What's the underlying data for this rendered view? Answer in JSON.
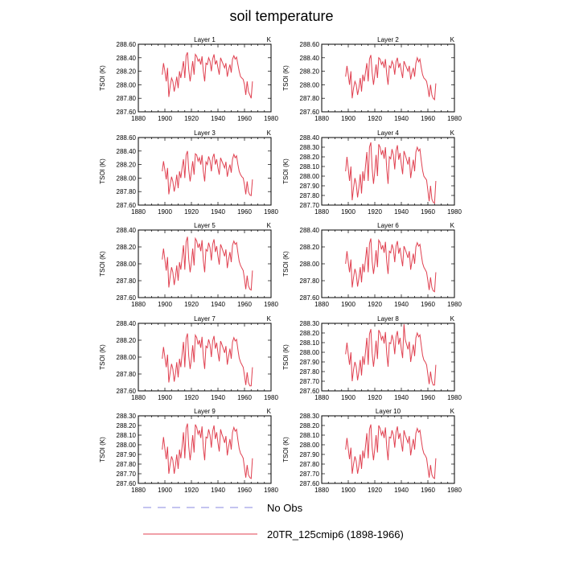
{
  "figure": {
    "title": "soil temperature",
    "legend": [
      {
        "label": "No Obs",
        "color": "#8a8ae0",
        "style": "dashed"
      },
      {
        "label": "20TR_125cmip6 (1898-1966)",
        "color": "#e04050",
        "style": "solid"
      }
    ]
  },
  "chart_data": [
    {
      "type": "line",
      "title": "Layer 1",
      "unit_label": "K",
      "ylabel": "TSOI  (K)",
      "xlim": [
        1880,
        1980
      ],
      "xticks": [
        1880,
        1900,
        1920,
        1940,
        1960,
        1980
      ],
      "ylim": [
        287.6,
        288.6
      ],
      "yticks": [
        287.6,
        287.8,
        288.0,
        288.2,
        288.4,
        288.6
      ],
      "ytick_labels": [
        "287.60",
        "287.80",
        "288.00",
        "288.20",
        "288.40",
        "288.60"
      ],
      "x_start": 1898,
      "values": [
        288.15,
        288.32,
        288.2,
        288.05,
        288.25,
        287.82,
        287.98,
        288.1,
        288.05,
        287.9,
        288.0,
        288.12,
        287.95,
        288.2,
        288.1,
        288.22,
        288.35,
        288.1,
        288.43,
        288.48,
        288.22,
        288.05,
        288.2,
        288.35,
        288.15,
        288.45,
        288.42,
        288.35,
        288.38,
        288.3,
        288.42,
        288.2,
        288.05,
        288.32,
        288.3,
        288.4,
        288.35,
        288.2,
        288.38,
        288.45,
        288.3,
        288.36,
        288.25,
        288.15,
        288.4,
        288.35,
        288.3,
        288.25,
        288.32,
        288.12,
        288.22,
        288.3,
        288.18,
        288.38,
        288.43,
        288.38,
        288.41,
        288.3,
        288.2,
        288.12,
        288.1,
        288.08,
        288.0,
        287.85,
        288.05,
        287.9,
        287.85,
        287.8,
        288.05
      ]
    },
    {
      "type": "line",
      "title": "Layer 2",
      "unit_label": "K",
      "ylabel": "TSOI  (K)",
      "xlim": [
        1880,
        1980
      ],
      "xticks": [
        1880,
        1900,
        1920,
        1940,
        1960,
        1980
      ],
      "ylim": [
        287.6,
        288.6
      ],
      "yticks": [
        287.6,
        287.8,
        288.0,
        288.2,
        288.4,
        288.6
      ],
      "ytick_labels": [
        "287.60",
        "287.80",
        "288.00",
        "288.20",
        "288.40",
        "288.60"
      ],
      "x_start": 1898,
      "values": [
        288.12,
        288.28,
        288.15,
        288.0,
        288.2,
        287.8,
        287.95,
        288.05,
        288.0,
        287.85,
        287.95,
        288.1,
        287.9,
        288.15,
        288.05,
        288.18,
        288.32,
        288.05,
        288.38,
        288.44,
        288.18,
        288.0,
        288.15,
        288.3,
        288.1,
        288.4,
        288.38,
        288.3,
        288.34,
        288.25,
        288.38,
        288.15,
        288.0,
        288.28,
        288.25,
        288.35,
        288.3,
        288.15,
        288.34,
        288.4,
        288.25,
        288.32,
        288.2,
        288.1,
        288.35,
        288.3,
        288.25,
        288.2,
        288.28,
        288.08,
        288.18,
        288.25,
        288.12,
        288.32,
        288.4,
        288.34,
        288.38,
        288.25,
        288.15,
        288.1,
        288.08,
        288.05,
        287.95,
        287.82,
        288.0,
        287.85,
        287.8,
        287.78,
        288.02
      ]
    },
    {
      "type": "line",
      "title": "Layer 3",
      "unit_label": "K",
      "ylabel": "TSOI  (K)",
      "xlim": [
        1880,
        1980
      ],
      "xticks": [
        1880,
        1900,
        1920,
        1940,
        1960,
        1980
      ],
      "ylim": [
        287.6,
        288.6
      ],
      "yticks": [
        287.6,
        287.8,
        288.0,
        288.2,
        288.4,
        288.6
      ],
      "ytick_labels": [
        "287.60",
        "287.80",
        "288.00",
        "288.20",
        "288.40",
        "288.60"
      ],
      "x_start": 1898,
      "values": [
        288.1,
        288.25,
        288.12,
        287.98,
        288.15,
        287.76,
        287.9,
        288.02,
        287.95,
        287.8,
        287.9,
        288.05,
        287.85,
        288.1,
        288.0,
        288.15,
        288.28,
        288.0,
        288.34,
        288.4,
        288.12,
        287.95,
        288.1,
        288.25,
        288.05,
        288.36,
        288.34,
        288.25,
        288.3,
        288.2,
        288.34,
        288.1,
        287.95,
        288.24,
        288.2,
        288.32,
        288.26,
        288.1,
        288.3,
        288.36,
        288.2,
        288.28,
        288.15,
        288.05,
        288.3,
        288.25,
        288.2,
        288.15,
        288.24,
        288.02,
        288.12,
        288.2,
        288.08,
        288.28,
        288.35,
        288.3,
        288.33,
        288.2,
        288.1,
        288.05,
        288.02,
        288.0,
        287.9,
        287.76,
        287.95,
        287.8,
        287.75,
        287.74,
        287.98
      ]
    },
    {
      "type": "line",
      "title": "Layer 4",
      "unit_label": "K",
      "ylabel": "TSOI  (K)",
      "xlim": [
        1880,
        1980
      ],
      "xticks": [
        1880,
        1900,
        1920,
        1940,
        1960,
        1980
      ],
      "ylim": [
        287.7,
        288.4
      ],
      "yticks": [
        287.7,
        287.8,
        287.9,
        288.0,
        288.1,
        288.2,
        288.3,
        288.4
      ],
      "ytick_labels": [
        "287.70",
        "287.80",
        "287.90",
        "288.00",
        "288.10",
        "288.20",
        "288.30",
        "288.40"
      ],
      "x_start": 1898,
      "values": [
        288.05,
        288.2,
        288.08,
        287.95,
        288.1,
        287.75,
        287.88,
        287.98,
        287.92,
        287.78,
        287.88,
        288.02,
        287.82,
        288.05,
        287.95,
        288.1,
        288.25,
        287.95,
        288.3,
        288.35,
        288.08,
        287.92,
        288.05,
        288.22,
        288.0,
        288.33,
        288.3,
        288.22,
        288.27,
        288.18,
        288.3,
        288.07,
        287.92,
        288.2,
        288.18,
        288.28,
        288.22,
        288.07,
        288.26,
        288.32,
        288.17,
        288.24,
        288.12,
        288.02,
        288.26,
        288.22,
        288.17,
        288.12,
        288.2,
        287.98,
        288.08,
        288.17,
        288.05,
        288.25,
        288.3,
        288.26,
        288.28,
        288.16,
        288.06,
        288.0,
        287.98,
        287.96,
        287.85,
        287.74,
        287.9,
        287.76,
        287.73,
        287.72,
        287.95
      ]
    },
    {
      "type": "line",
      "title": "Layer 5",
      "unit_label": "K",
      "ylabel": "TSOI  (K)",
      "xlim": [
        1880,
        1980
      ],
      "xticks": [
        1880,
        1900,
        1920,
        1940,
        1960,
        1980
      ],
      "ylim": [
        287.6,
        288.4
      ],
      "yticks": [
        287.6,
        287.8,
        288.0,
        288.2,
        288.4
      ],
      "ytick_labels": [
        "287.60",
        "287.80",
        "288.00",
        "288.20",
        "288.40"
      ],
      "x_start": 1898,
      "values": [
        288.05,
        288.18,
        288.05,
        287.92,
        288.08,
        287.72,
        287.85,
        287.96,
        287.9,
        287.75,
        287.85,
        287.98,
        287.8,
        288.02,
        287.93,
        288.07,
        288.22,
        287.93,
        288.26,
        288.32,
        288.05,
        287.9,
        288.02,
        288.18,
        287.98,
        288.3,
        288.27,
        288.19,
        288.24,
        288.15,
        288.28,
        288.04,
        287.9,
        288.17,
        288.15,
        288.25,
        288.19,
        288.04,
        288.23,
        288.29,
        288.14,
        288.21,
        288.09,
        287.99,
        288.23,
        288.19,
        288.14,
        288.09,
        288.17,
        287.95,
        288.05,
        288.14,
        288.02,
        288.22,
        288.27,
        288.23,
        288.25,
        288.13,
        288.03,
        287.98,
        287.95,
        287.92,
        287.82,
        287.7,
        287.86,
        287.74,
        287.7,
        287.69,
        287.92
      ]
    },
    {
      "type": "line",
      "title": "Layer 6",
      "unit_label": "K",
      "ylabel": "TSOI  (K)",
      "xlim": [
        1880,
        1980
      ],
      "xticks": [
        1880,
        1900,
        1920,
        1940,
        1960,
        1980
      ],
      "ylim": [
        287.6,
        288.4
      ],
      "yticks": [
        287.6,
        287.8,
        288.0,
        288.2,
        288.4
      ],
      "ytick_labels": [
        "287.60",
        "287.80",
        "288.00",
        "288.20",
        "288.40"
      ],
      "x_start": 1898,
      "values": [
        288.0,
        288.15,
        288.02,
        287.9,
        288.05,
        287.72,
        287.84,
        287.94,
        287.88,
        287.73,
        287.83,
        287.96,
        287.78,
        288.0,
        287.9,
        288.05,
        288.2,
        287.9,
        288.24,
        288.3,
        288.03,
        287.88,
        288.0,
        288.16,
        287.96,
        288.28,
        288.25,
        288.17,
        288.22,
        288.13,
        288.26,
        288.02,
        287.88,
        288.15,
        288.13,
        288.23,
        288.17,
        288.02,
        288.21,
        288.27,
        288.12,
        288.19,
        288.07,
        287.97,
        288.21,
        288.17,
        288.12,
        288.07,
        288.15,
        287.93,
        288.03,
        288.12,
        288.0,
        288.2,
        288.25,
        288.21,
        288.23,
        288.11,
        288.01,
        287.96,
        287.93,
        287.9,
        287.8,
        287.69,
        287.84,
        287.72,
        287.68,
        287.67,
        287.9
      ]
    },
    {
      "type": "line",
      "title": "Layer 7",
      "unit_label": "K",
      "ylabel": "TSOI  (K)",
      "xlim": [
        1880,
        1980
      ],
      "xticks": [
        1880,
        1900,
        1920,
        1940,
        1960,
        1980
      ],
      "ylim": [
        287.6,
        288.4
      ],
      "yticks": [
        287.6,
        287.8,
        288.0,
        288.2,
        288.4
      ],
      "ytick_labels": [
        "287.60",
        "287.80",
        "288.00",
        "288.20",
        "288.40"
      ],
      "x_start": 1898,
      "values": [
        287.98,
        288.12,
        288.0,
        287.88,
        288.03,
        287.7,
        287.82,
        287.92,
        287.86,
        287.71,
        287.81,
        287.94,
        287.76,
        287.98,
        287.88,
        288.03,
        288.18,
        287.88,
        288.22,
        288.28,
        288.01,
        287.86,
        287.98,
        288.14,
        287.94,
        288.26,
        288.23,
        288.15,
        288.2,
        288.11,
        288.24,
        288.0,
        287.86,
        288.13,
        288.11,
        288.21,
        288.15,
        288.0,
        288.19,
        288.25,
        288.1,
        288.17,
        288.05,
        287.95,
        288.19,
        288.15,
        288.1,
        288.05,
        288.13,
        287.91,
        288.01,
        288.1,
        287.98,
        288.18,
        288.23,
        288.19,
        288.21,
        288.09,
        287.99,
        287.94,
        287.91,
        287.88,
        287.78,
        287.67,
        287.82,
        287.7,
        287.66,
        287.66,
        287.88
      ]
    },
    {
      "type": "line",
      "title": "Layer 8",
      "unit_label": "K",
      "ylabel": "TSOI  (K)",
      "xlim": [
        1880,
        1980
      ],
      "xticks": [
        1880,
        1900,
        1920,
        1940,
        1960,
        1980
      ],
      "ylim": [
        287.6,
        288.3
      ],
      "yticks": [
        287.6,
        287.7,
        287.8,
        287.9,
        288.0,
        288.1,
        288.2,
        288.3
      ],
      "ytick_labels": [
        "287.60",
        "287.70",
        "287.80",
        "287.90",
        "288.00",
        "288.10",
        "288.20",
        "288.30"
      ],
      "x_start": 1898,
      "values": [
        287.98,
        288.1,
        287.98,
        287.87,
        288.0,
        287.7,
        287.82,
        287.9,
        287.85,
        287.71,
        287.8,
        287.92,
        287.76,
        287.96,
        287.87,
        288.0,
        288.15,
        287.87,
        288.19,
        288.24,
        287.99,
        287.85,
        287.97,
        288.12,
        287.93,
        288.23,
        288.2,
        288.13,
        288.17,
        288.09,
        288.21,
        287.98,
        287.85,
        288.1,
        288.09,
        288.18,
        288.12,
        287.98,
        288.16,
        288.22,
        288.08,
        288.15,
        288.03,
        287.94,
        288.29,
        288.13,
        288.08,
        288.03,
        288.11,
        287.9,
        287.99,
        288.08,
        287.96,
        288.15,
        288.2,
        288.16,
        288.18,
        288.07,
        287.97,
        287.92,
        287.9,
        287.87,
        287.77,
        287.67,
        287.8,
        287.7,
        287.66,
        287.66,
        287.87
      ]
    },
    {
      "type": "line",
      "title": "Layer 9",
      "unit_label": "K",
      "ylabel": "TSOI  (K)",
      "xlim": [
        1880,
        1980
      ],
      "xticks": [
        1880,
        1900,
        1920,
        1940,
        1960,
        1980
      ],
      "ylim": [
        287.6,
        288.3
      ],
      "yticks": [
        287.6,
        287.7,
        287.8,
        287.9,
        288.0,
        288.1,
        288.2,
        288.3
      ],
      "ytick_labels": [
        "287.60",
        "287.70",
        "287.80",
        "287.90",
        "288.00",
        "288.10",
        "288.20",
        "288.30"
      ],
      "x_start": 1898,
      "values": [
        287.95,
        288.08,
        287.96,
        287.85,
        287.98,
        287.7,
        287.8,
        287.88,
        287.84,
        287.7,
        287.79,
        287.9,
        287.75,
        287.95,
        287.86,
        287.98,
        288.13,
        287.86,
        288.17,
        288.22,
        287.98,
        287.84,
        287.96,
        288.1,
        287.92,
        288.21,
        288.18,
        288.11,
        288.15,
        288.07,
        288.19,
        287.97,
        287.84,
        288.08,
        288.07,
        288.16,
        288.1,
        287.97,
        288.14,
        288.2,
        288.06,
        288.13,
        288.02,
        287.93,
        288.16,
        288.11,
        288.07,
        288.02,
        288.09,
        287.89,
        287.98,
        288.06,
        287.95,
        288.13,
        288.18,
        288.14,
        288.16,
        288.05,
        287.96,
        287.91,
        287.89,
        287.86,
        287.76,
        287.66,
        287.79,
        287.69,
        287.66,
        287.65,
        287.86
      ]
    },
    {
      "type": "line",
      "title": "Layer 10",
      "unit_label": "K",
      "ylabel": "TSOI  (K)",
      "xlim": [
        1880,
        1980
      ],
      "xticks": [
        1880,
        1900,
        1920,
        1940,
        1960,
        1980
      ],
      "ylim": [
        287.6,
        288.3
      ],
      "yticks": [
        287.6,
        287.7,
        287.8,
        287.9,
        288.0,
        288.1,
        288.2,
        288.3
      ],
      "ytick_labels": [
        "287.60",
        "287.70",
        "287.80",
        "287.90",
        "288.00",
        "288.10",
        "288.20",
        "288.30"
      ],
      "x_start": 1898,
      "values": [
        287.95,
        288.07,
        287.96,
        287.85,
        287.97,
        287.7,
        287.8,
        287.88,
        287.83,
        287.7,
        287.78,
        287.9,
        287.75,
        287.94,
        287.86,
        287.98,
        288.12,
        287.86,
        288.16,
        288.21,
        287.97,
        287.84,
        287.96,
        288.1,
        287.92,
        288.2,
        288.17,
        288.1,
        288.14,
        288.07,
        288.18,
        287.97,
        287.84,
        288.08,
        288.07,
        288.15,
        288.1,
        287.97,
        288.13,
        288.19,
        288.06,
        288.12,
        288.02,
        287.93,
        288.15,
        288.1,
        288.06,
        288.02,
        288.09,
        287.89,
        287.98,
        288.06,
        287.95,
        288.12,
        288.17,
        288.13,
        288.15,
        288.05,
        287.96,
        287.91,
        287.89,
        287.86,
        287.76,
        287.66,
        287.79,
        287.69,
        287.66,
        287.65,
        287.86
      ]
    }
  ]
}
